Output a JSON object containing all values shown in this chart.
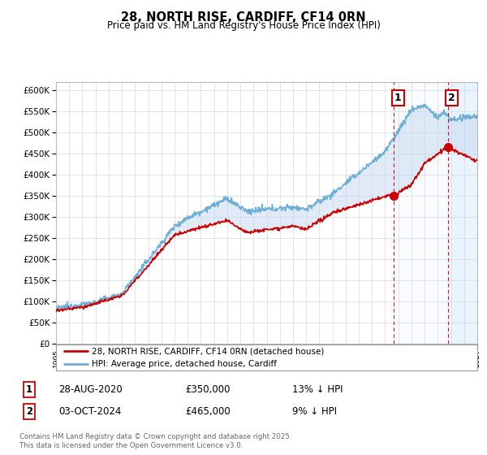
{
  "title": "28, NORTH RISE, CARDIFF, CF14 0RN",
  "subtitle": "Price paid vs. HM Land Registry's House Price Index (HPI)",
  "ylim": [
    0,
    620000
  ],
  "yticks": [
    0,
    50000,
    100000,
    150000,
    200000,
    250000,
    300000,
    350000,
    400000,
    450000,
    500000,
    550000,
    600000
  ],
  "hpi_color": "#6baed6",
  "price_color": "#cc0000",
  "vline_color": "#cc0000",
  "shade_color": "#ddeeff",
  "sale1_x": 2020.66,
  "sale1_y": 350000,
  "sale2_x": 2024.75,
  "sale2_y": 465000,
  "legend_line1": "28, NORTH RISE, CARDIFF, CF14 0RN (detached house)",
  "legend_line2": "HPI: Average price, detached house, Cardiff",
  "annot1_date": "28-AUG-2020",
  "annot1_price": "£350,000",
  "annot1_hpi": "13% ↓ HPI",
  "annot2_date": "03-OCT-2024",
  "annot2_price": "£465,000",
  "annot2_hpi": "9% ↓ HPI",
  "footer": "Contains HM Land Registry data © Crown copyright and database right 2025.\nThis data is licensed under the Open Government Licence v3.0.",
  "xmin": 1995,
  "xmax": 2027
}
